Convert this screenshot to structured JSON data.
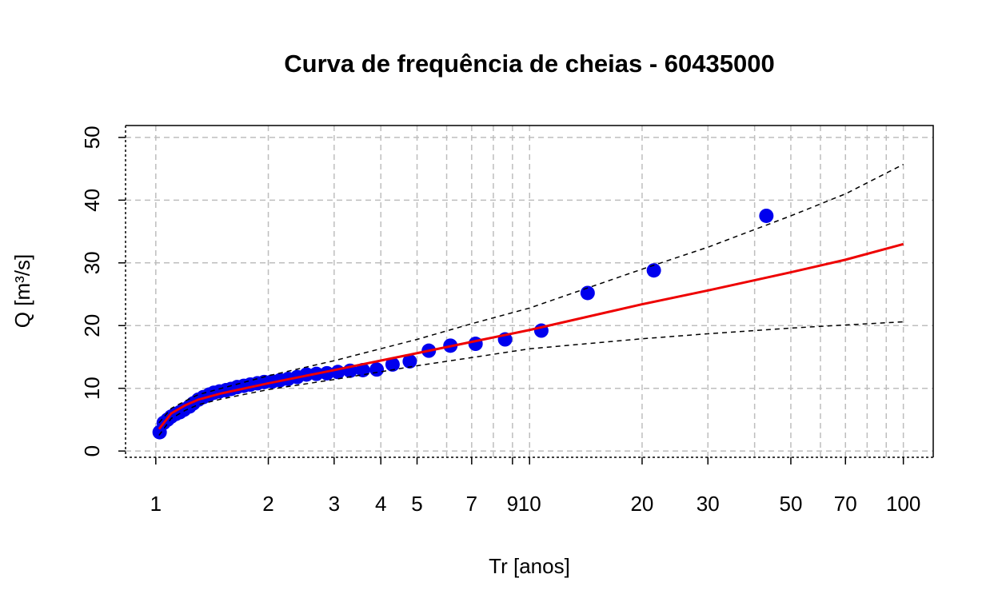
{
  "chart_data": {
    "type": "scatter",
    "title": "Curva de frequência de cheias - 60435000",
    "xlabel": "Tr [anos]",
    "ylabel": "Q [m³/s]",
    "xlog": true,
    "grid": true,
    "xlim": [
      0.83,
      120.2
    ],
    "ylim": [
      -1,
      51.9
    ],
    "xticks": [
      1,
      2,
      3,
      4,
      5,
      7,
      9,
      10,
      20,
      30,
      50,
      70,
      100
    ],
    "xgrid": [
      1,
      2,
      3,
      4,
      5,
      6,
      7,
      8,
      9,
      10,
      20,
      30,
      40,
      50,
      60,
      70,
      80,
      90,
      100
    ],
    "yticks": [
      0,
      10,
      20,
      30,
      40,
      50
    ],
    "series": [
      {
        "type": "scatter",
        "color": "#0000ee",
        "x": [
          43,
          21.5,
          14.3,
          10.75,
          8.6,
          7.17,
          6.14,
          5.375,
          4.78,
          4.3,
          3.9,
          3.58,
          3.31,
          3.07,
          2.87,
          2.69,
          2.53,
          2.39,
          2.26,
          2.15,
          2.05,
          1.95,
          1.87,
          1.79,
          1.72,
          1.65,
          1.59,
          1.54,
          1.48,
          1.43,
          1.39,
          1.34,
          1.3,
          1.26,
          1.23,
          1.19,
          1.16,
          1.13,
          1.1,
          1.075,
          1.05,
          1.024
        ],
        "values": [
          37.5,
          28.8,
          25.2,
          19.2,
          17.8,
          17.1,
          16.8,
          16.0,
          14.3,
          13.8,
          13.0,
          12.9,
          12.8,
          12.6,
          12.4,
          12.3,
          12.2,
          11.8,
          11.5,
          11.3,
          11.1,
          11.0,
          10.8,
          10.6,
          10.4,
          10.2,
          9.9,
          9.7,
          9.5,
          9.3,
          9.0,
          8.6,
          8.2,
          7.6,
          7.1,
          6.6,
          6.2,
          5.9,
          5.5,
          5.0,
          4.5,
          3.0
        ]
      },
      {
        "type": "line",
        "color": "#ee0000",
        "width": 3,
        "x": [
          1.02,
          1.1,
          1.2,
          1.3,
          1.5,
          2,
          3,
          5,
          7,
          10,
          20,
          30,
          50,
          70,
          100
        ],
        "values": [
          3.5,
          6,
          7.3,
          8.2,
          9.2,
          10.8,
          12.9,
          15.6,
          17.4,
          19.3,
          23.4,
          25.6,
          28.5,
          30.5,
          33.0
        ]
      },
      {
        "type": "line",
        "color": "#000000",
        "width": 1.5,
        "dashed": true,
        "x": [
          1.02,
          1.1,
          1.2,
          1.3,
          1.5,
          2,
          3,
          5,
          7,
          10,
          20,
          30,
          50,
          70,
          100
        ],
        "values": [
          4.5,
          6.8,
          8,
          9,
          10,
          12,
          14.4,
          17.8,
          20.3,
          22.8,
          29,
          32.5,
          37.5,
          41,
          45.7
        ]
      },
      {
        "type": "line",
        "color": "#000000",
        "width": 1.5,
        "dashed": true,
        "x": [
          1.02,
          1.1,
          1.2,
          1.3,
          1.5,
          2,
          3,
          5,
          7,
          10,
          20,
          30,
          50,
          70,
          100
        ],
        "values": [
          2.5,
          5.2,
          6.5,
          7.4,
          8.3,
          9.8,
          11.4,
          13.6,
          14.9,
          16.3,
          17.9,
          18.7,
          19.6,
          20.1,
          20.6
        ]
      }
    ]
  }
}
